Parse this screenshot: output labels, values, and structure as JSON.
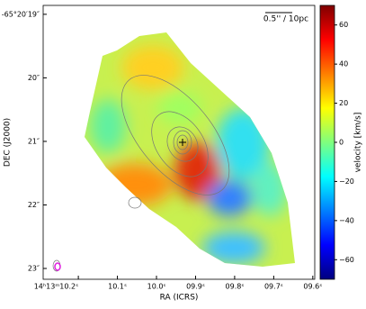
{
  "chart_data": {
    "type": "image",
    "x_label": "RA (ICRS)",
    "y_label": "DEC (J2000)",
    "xlim": [
      10.29,
      9.595
    ],
    "ylim": [
      18.86,
      23.17
    ],
    "xticks": [
      {
        "value": 10.2,
        "label": "14ʰ13ᵐ10.2ˢ"
      },
      {
        "value": 10.1,
        "label": "10.1ˢ"
      },
      {
        "value": 10.0,
        "label": "10.0ˢ"
      },
      {
        "value": 9.9,
        "label": "09.9ˢ"
      },
      {
        "value": 9.8,
        "label": "09.8ˢ"
      },
      {
        "value": 9.7,
        "label": "09.7ˢ"
      },
      {
        "value": 9.6,
        "label": "09.6ˢ"
      }
    ],
    "yticks": [
      {
        "value": 19,
        "label": "-65°20′19″"
      },
      {
        "value": 20,
        "label": "20″"
      },
      {
        "value": 21,
        "label": "21″"
      },
      {
        "value": 22,
        "label": "22″"
      },
      {
        "value": 23,
        "label": "23″"
      }
    ],
    "colorbar": {
      "label": "velocity [km/s]",
      "colormap": "jet",
      "clim": [
        -70,
        70
      ],
      "ticks": [
        {
          "value": -60,
          "label": "−60"
        },
        {
          "value": -40,
          "label": "−40"
        },
        {
          "value": -20,
          "label": "−20"
        },
        0,
        20,
        40,
        60
      ]
    },
    "scale_bar": "0.5'' / 10pc"
  }
}
